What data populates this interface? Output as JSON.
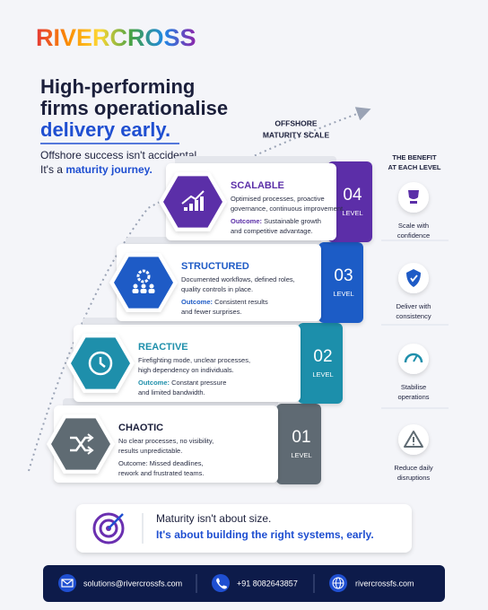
{
  "header": {
    "logo": "RIVERCROSS",
    "headline": [
      "High-performing",
      "firms operationalise",
      "delivery early."
    ],
    "subtitle_line1": "Offshore success isn't accidental.",
    "subtitle_line2_prefix": "It's a",
    "subtitle_line2_highlight": "maturity journey."
  },
  "scale_label": [
    "OFFSHORE",
    "MATURITY SCALE"
  ],
  "benefit_heading": [
    "THE BENEFIT",
    "AT EACH LEVEL"
  ],
  "levels": [
    {
      "number": "04",
      "level_label": "LEVEL",
      "name": "SCALABLE",
      "description": [
        "Optimised processes, proactive",
        "governance, continuous improvement."
      ],
      "outcome_label": "Outcome:",
      "outcome": [
        "Sustainable growth",
        "and competitive advantage."
      ],
      "benefit": [
        "Scale with",
        "confidence"
      ]
    },
    {
      "number": "03",
      "level_label": "LEVEL",
      "name": "STRUCTURED",
      "description": [
        "Documented workflows, defined roles,",
        "quality controls in place."
      ],
      "outcome_label": "Outcome:",
      "outcome": [
        "Consistent results",
        "and fewer surprises."
      ],
      "benefit": [
        "Deliver with",
        "consistency"
      ]
    },
    {
      "number": "02",
      "level_label": "LEVEL",
      "name": "REACTIVE",
      "description": [
        "Firefighting mode, unclear processes,",
        "high dependency on individuals."
      ],
      "outcome_label": "Outcome:",
      "outcome": [
        "Constant pressure",
        "and limited bandwidth."
      ],
      "benefit": [
        "Stabilise",
        "operations"
      ]
    },
    {
      "number": "01",
      "level_label": "LEVEL",
      "name": "CHAOTIC",
      "description": [
        "No clear processes, no visibility,",
        "results unpredictable."
      ],
      "outcome_label": "Outcome:",
      "outcome": [
        "Missed deadlines,",
        "rework and frustrated teams."
      ],
      "benefit": [
        "Reduce daily",
        "disruptions"
      ]
    }
  ],
  "banner": {
    "line1": "Maturity isn't about size.",
    "line2": "It's about building the right systems, early."
  },
  "footer": {
    "email": "solutions@rivercrossfs.com",
    "phone": "+91 8082643857",
    "website": "rivercrossfs.com"
  }
}
